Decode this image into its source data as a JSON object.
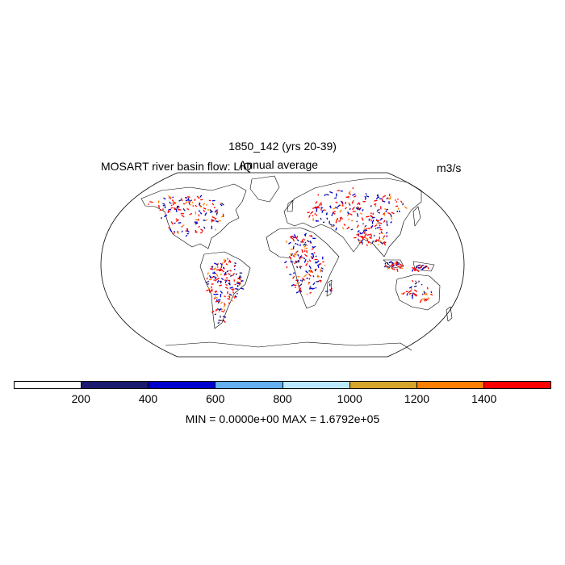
{
  "title": "1850_142 (yrs 20-39)",
  "left_label": "MOSART river basin flow: LIQ",
  "center_label": "Annual average",
  "units_label": "m3/s",
  "stats": "MIN = 0.0000e+00 MAX = 1.6792e+05",
  "colorbar": {
    "colors": [
      "#ffffff",
      "#1a1a6e",
      "#0000cd",
      "#63aff0",
      "#bbe9ff",
      "#d4a52a",
      "#ff8000",
      "#ff0000"
    ],
    "tick_labels": [
      "200",
      "400",
      "600",
      "800",
      "1000",
      "1200",
      "1400"
    ]
  },
  "projection": "Robinson",
  "river_colors": {
    "red": "#ff0000",
    "blue": "#0000cd",
    "dark_blue": "#1a1a6e",
    "orange": "#ff8000"
  }
}
